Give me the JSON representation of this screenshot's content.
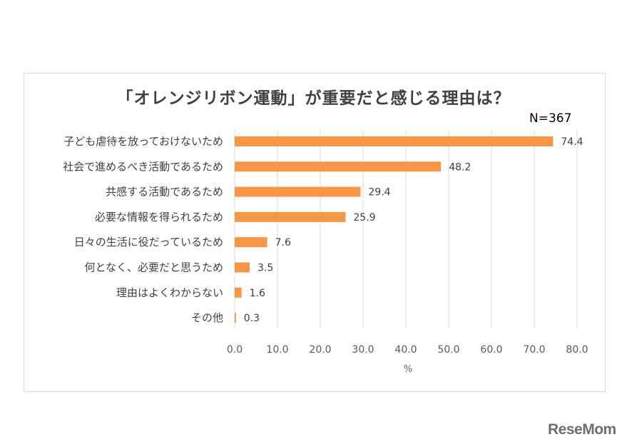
{
  "chart_data": {
    "type": "bar",
    "orientation": "horizontal",
    "title": "「オレンジリボン運動」が重要だと感じる理由は？",
    "sample_size": "N=367",
    "categories": [
      "子ども虐待を放っておけないため",
      "社会で進めるべき活動であるため",
      "共感する活動であるため",
      "必要な情報を得られるため",
      "日々の生活に役だっているため",
      "何となく、必要だと思うため",
      "理由はよくわからない",
      "その他"
    ],
    "values": [
      74.4,
      48.2,
      29.4,
      25.9,
      7.6,
      3.5,
      1.6,
      0.3
    ],
    "value_labels": [
      "74.4",
      "48.2",
      "29.4",
      "25.9",
      "7.6",
      "3.5",
      "1.6",
      "0.3"
    ],
    "xlabel": "%",
    "xlim": [
      0,
      80
    ],
    "xticks": [
      "0.0",
      "10.0",
      "20.0",
      "30.0",
      "40.0",
      "50.0",
      "60.0",
      "70.0",
      "80.0"
    ],
    "grid": true,
    "bar_color": "#f79646",
    "grid_color": "#d9d9d9"
  },
  "branding": {
    "logo_text": "ReseMom"
  }
}
